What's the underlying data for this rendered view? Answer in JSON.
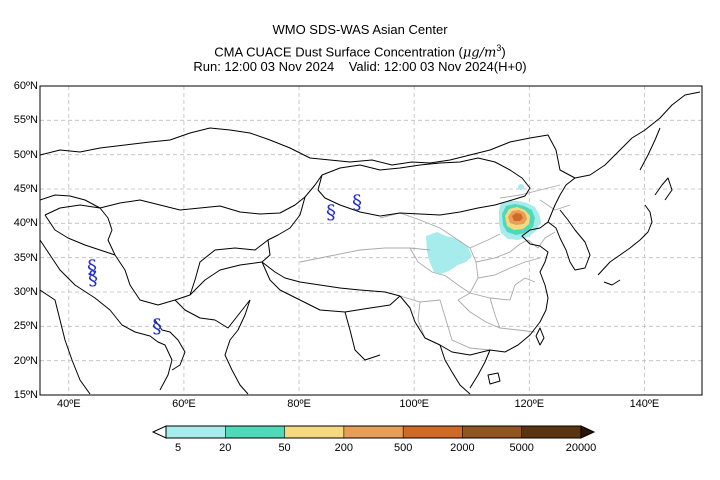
{
  "header": {
    "line1": "WMO SDS-WAS Asian Center",
    "line2_prefix": "CMA CUACE Dust Surface Concentration (",
    "line2_unit_mu": "μ",
    "line2_unit_g": "g/m",
    "line2_unit_exp": "3",
    "line2_suffix": ")",
    "line3": "Run: 12:00 03 Nov 2024    Valid: 12:00 03 Nov 2024(H+0)"
  },
  "map": {
    "lon_range": [
      35,
      150
    ],
    "lat_range": [
      15,
      60
    ],
    "lat_ticks": [
      {
        "value": 60,
        "label": "60ºN"
      },
      {
        "value": 55,
        "label": "55ºN"
      },
      {
        "value": 50,
        "label": "50ºN"
      },
      {
        "value": 45,
        "label": "45ºN"
      },
      {
        "value": 40,
        "label": "40ºN"
      },
      {
        "value": 35,
        "label": "35ºN"
      },
      {
        "value": 30,
        "label": "30ºN"
      },
      {
        "value": 25,
        "label": "25ºN"
      },
      {
        "value": 20,
        "label": "20ºN"
      },
      {
        "value": 15,
        "label": "15ºN"
      }
    ],
    "lon_ticks": [
      {
        "value": 40,
        "label": "40ºE"
      },
      {
        "value": 60,
        "label": "60ºE"
      },
      {
        "value": 80,
        "label": "80ºE"
      },
      {
        "value": 100,
        "label": "100ºE"
      },
      {
        "value": 120,
        "label": "120ºE"
      },
      {
        "value": 140,
        "label": "140ºE"
      }
    ],
    "gridlines": "dashed",
    "weather_symbol": "§",
    "colors": {
      "border": "#000000",
      "province_border": "#a9a9a9",
      "grid": "#bdbdbd",
      "symbol": "#2330c8"
    }
  },
  "colorbar": {
    "levels": [
      "5",
      "20",
      "50",
      "200",
      "500",
      "2000",
      "5000",
      "20000"
    ],
    "colors": [
      "#a7ecec",
      "#50d9b9",
      "#f4d97f",
      "#e79e58",
      "#ce6a26",
      "#8f5621",
      "#5a3311"
    ],
    "extend": "both",
    "end_colors": {
      "min": "#ffffff",
      "max": "#2a1608"
    }
  }
}
